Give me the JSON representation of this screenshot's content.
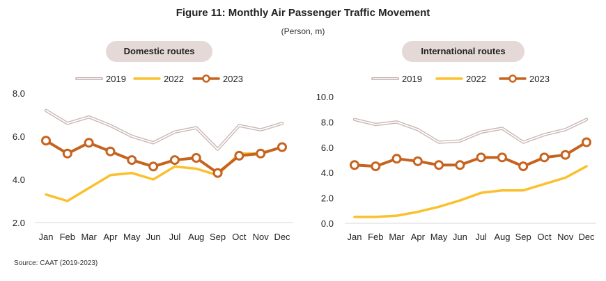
{
  "title": "Figure 11: Monthly Air Passenger Traffic Movement",
  "subtitle": "(Person, m)",
  "source": "Source: CAAT (2019-2023)",
  "colors": {
    "s2019": "#c9b6b4",
    "s2022": "#fbc02d",
    "s2023": "#c6631e"
  },
  "chart_data": [
    {
      "type": "line",
      "title": "Domestic routes",
      "categories": [
        "Jan",
        "Feb",
        "Mar",
        "Apr",
        "May",
        "Jun",
        "Jul",
        "Aug",
        "Sep",
        "Oct",
        "Nov",
        "Dec"
      ],
      "ylim": [
        2.0,
        8.0
      ],
      "yticks": [
        "8.0",
        "6.0",
        "4.0",
        "2.0"
      ],
      "ytick_values": [
        8,
        6,
        4,
        2
      ],
      "legend_position": "top",
      "series": [
        {
          "name": "2019",
          "values": [
            7.2,
            6.6,
            6.9,
            6.5,
            6.0,
            5.7,
            6.2,
            6.4,
            5.4,
            6.5,
            6.3,
            6.6
          ]
        },
        {
          "name": "2022",
          "values": [
            3.3,
            3.0,
            3.6,
            4.2,
            4.3,
            4.0,
            4.6,
            4.5,
            4.2,
            5.2,
            5.2,
            5.5
          ]
        },
        {
          "name": "2023",
          "values": [
            5.8,
            5.2,
            5.7,
            5.3,
            4.9,
            4.6,
            4.9,
            5.0,
            4.3,
            5.1,
            5.2,
            5.5
          ]
        }
      ]
    },
    {
      "type": "line",
      "title": "International routes",
      "categories": [
        "Jan",
        "Feb",
        "Mar",
        "Apr",
        "May",
        "Jun",
        "Jul",
        "Aug",
        "Sep",
        "Oct",
        "Nov",
        "Dec"
      ],
      "ylim": [
        0.0,
        10.0
      ],
      "yticks": [
        "10.0",
        "8.0",
        "6.0",
        "4.0",
        "2.0",
        "0.0"
      ],
      "ytick_values": [
        10,
        8,
        6,
        4,
        2,
        0
      ],
      "legend_position": "top",
      "series": [
        {
          "name": "2019",
          "values": [
            8.2,
            7.8,
            8.0,
            7.4,
            6.4,
            6.5,
            7.2,
            7.5,
            6.4,
            7.0,
            7.4,
            8.2
          ]
        },
        {
          "name": "2022",
          "values": [
            0.5,
            0.5,
            0.6,
            0.9,
            1.3,
            1.8,
            2.4,
            2.6,
            2.6,
            3.1,
            3.6,
            4.5
          ]
        },
        {
          "name": "2023",
          "values": [
            4.6,
            4.5,
            5.1,
            4.9,
            4.6,
            4.6,
            5.2,
            5.2,
            4.5,
            5.2,
            5.4,
            6.4
          ]
        }
      ]
    }
  ]
}
